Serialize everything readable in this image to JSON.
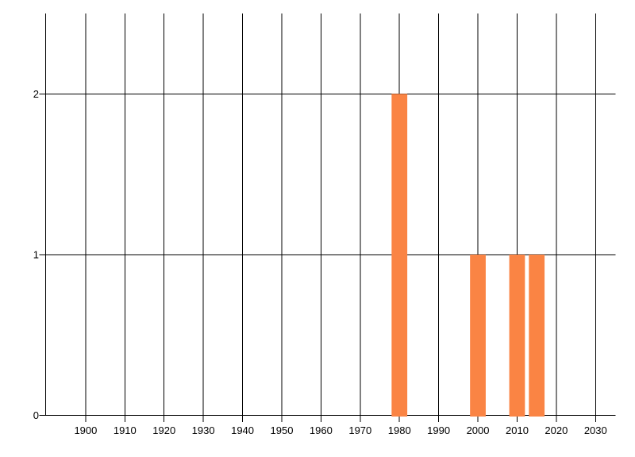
{
  "chart_data": {
    "type": "bar",
    "title": "",
    "xlabel": "",
    "ylabel": "",
    "x": [
      1980,
      2000,
      2010,
      2015
    ],
    "values": [
      2,
      1,
      1,
      1
    ],
    "bar_width_years": 4,
    "x_ticks": [
      1900,
      1910,
      1920,
      1930,
      1940,
      1950,
      1960,
      1970,
      1980,
      1990,
      2000,
      2010,
      2020,
      2030
    ],
    "y_ticks": [
      0,
      1,
      2
    ],
    "xlim": [
      1889.8,
      2035.1
    ],
    "ylim": [
      0,
      2.5
    ],
    "grid": true,
    "legend": "none",
    "colors": {
      "bar": "#FA8444",
      "gridline": "#000000",
      "axis": "#000000",
      "label": "#000000",
      "background": "#FFFFFF"
    }
  }
}
